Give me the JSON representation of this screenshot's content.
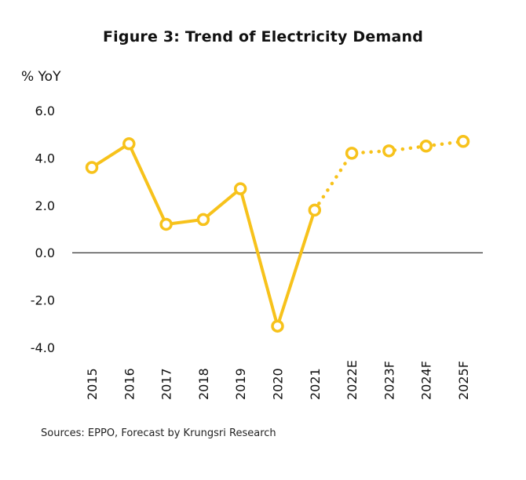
{
  "chart_data": {
    "type": "line",
    "title": "Figure 3: Trend of Electricity Demand",
    "ylabel": "% YoY",
    "xlabel": "",
    "categories": [
      "2015",
      "2016",
      "2017",
      "2018",
      "2019",
      "2020",
      "2021",
      "2022E",
      "2023F",
      "2024F",
      "2025F"
    ],
    "actual_values": [
      3.6,
      4.6,
      1.2,
      1.4,
      2.7,
      -3.1,
      1.8
    ],
    "forecast_values": [
      1.8,
      4.2,
      4.3,
      4.5,
      4.7
    ],
    "forecast_start_category": "2021",
    "ylim": [
      -4.0,
      6.0
    ],
    "yticks": [
      "6.0",
      "4.0",
      "2.0",
      "0.0",
      "-2.0",
      "-4.0"
    ],
    "ytick_values": [
      6,
      4,
      2,
      0,
      -2,
      -4
    ],
    "grid": false,
    "zero_line": true,
    "line_color": "#F7C21B",
    "axis_color": "#000000",
    "source": "Sources: EPPO, Forecast by Krungsri Research"
  }
}
